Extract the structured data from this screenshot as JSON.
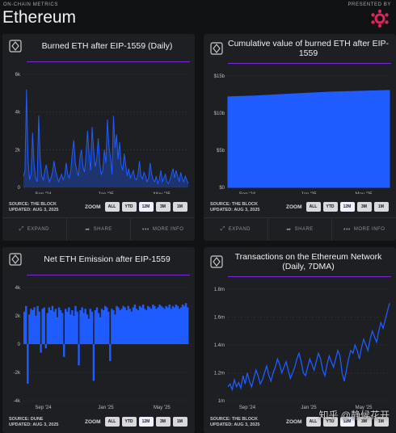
{
  "header": {
    "kicker": "ON-CHAIN METRICS",
    "title": "Ethereum",
    "presented_by": "PRESENTED BY",
    "logo_color": "#e0245e"
  },
  "colors": {
    "series": "#1f5cff",
    "accent_line": "#7a2bd9",
    "panel": "#1e1f22",
    "background": "#111214"
  },
  "panels": [
    {
      "title": "Burned ETH after EIP-1559 (Daily)",
      "source": "SOURCE: THE BLOCK",
      "updated": "UPDATED: AUG 3, 2025",
      "zoom_label": "ZOOM",
      "zoom_buttons": [
        "ALL",
        "YTD",
        "12M",
        "3M",
        "1M"
      ],
      "footer": [
        "EXPAND",
        "SHARE",
        "MORE INFO"
      ]
    },
    {
      "title": "Cumulative value of burned ETH after EIP-1559",
      "source": "SOURCE: THE BLOCK",
      "updated": "UPDATED: AUG 3, 2025",
      "zoom_label": "ZOOM",
      "zoom_buttons": [
        "ALL",
        "YTD",
        "12M",
        "3M",
        "1M"
      ],
      "footer": [
        "EXPAND",
        "SHARE",
        "MORE INFO"
      ]
    },
    {
      "title": "Net ETH Emission after EIP-1559",
      "source": "SOURCE: DUNE",
      "updated": "UPDATED: AUG 3, 2025",
      "zoom_label": "ZOOM",
      "zoom_buttons": [
        "ALL",
        "YTD",
        "12M",
        "3M",
        "1M"
      ]
    },
    {
      "title": "Transactions on the Ethereum Network (Daily, 7DMA)",
      "source": "SOURCE: THE BLOCK",
      "updated": "UPDATED: AUG 3, 2025",
      "zoom_label": "ZOOM",
      "zoom_buttons": [
        "ALL",
        "YTD",
        "12M",
        "3M",
        "1M"
      ]
    }
  ],
  "watermark": "知乎 @静候花开",
  "chart_data": [
    {
      "type": "area",
      "title": "Burned ETH after EIP-1559 (Daily)",
      "ylim": [
        0,
        6000
      ],
      "yticks": [
        0,
        2000,
        4000,
        6000
      ],
      "ytick_labels": [
        "0",
        "2k",
        "4k",
        "6k"
      ],
      "xticks": [
        "Sep '24",
        "Jan '25",
        "May '25"
      ],
      "xrange": [
        0,
        364
      ],
      "xtick_pos": [
        30,
        152,
        273
      ],
      "series": [
        {
          "values": [
            600,
            900,
            5200,
            1500,
            400,
            700,
            2900,
            1200,
            500,
            300,
            3800,
            1500,
            600,
            400,
            900,
            1200,
            700,
            300,
            500,
            800,
            1400,
            900,
            600,
            300,
            500,
            700,
            400,
            600,
            1300,
            700,
            500,
            900,
            1800,
            2500,
            1300,
            900,
            600,
            1600,
            2000,
            1100,
            800,
            1700,
            3000,
            1800,
            900,
            3200,
            2000,
            1100,
            1500,
            2600,
            1300,
            700,
            900,
            2000,
            1300,
            3600,
            2200,
            1600,
            700,
            3800,
            2100,
            2800,
            1500,
            2400,
            1200,
            900,
            1800,
            1200,
            600,
            1000,
            500,
            700,
            900,
            500,
            400,
            700,
            1400,
            600,
            450,
            800,
            600,
            300,
            500,
            1300,
            700,
            400,
            300,
            600,
            200,
            400,
            900,
            300,
            500,
            700,
            300,
            200,
            400,
            700,
            1000,
            500,
            900,
            600,
            300,
            800,
            500,
            300,
            600,
            400,
            200
          ]
        }
      ]
    },
    {
      "type": "area",
      "title": "Cumulative value of burned ETH after EIP-1559",
      "ylim": [
        0,
        15
      ],
      "yticks": [
        0,
        5,
        10,
        15
      ],
      "ytick_labels": [
        "$0",
        "$5b",
        "$10b",
        "$15b"
      ],
      "xticks": [
        "Sep '24",
        "Jan '25",
        "May '25"
      ],
      "x": [
        0,
        60,
        120,
        180,
        240,
        300,
        364
      ],
      "series": [
        {
          "values": [
            12.2,
            12.3,
            12.5,
            12.7,
            12.85,
            12.95,
            13.05
          ]
        }
      ]
    },
    {
      "type": "bar",
      "title": "Net ETH Emission after EIP-1559",
      "ylim": [
        -4000,
        4000
      ],
      "yticks": [
        -4000,
        -2000,
        0,
        2000,
        4000
      ],
      "ytick_labels": [
        "-4k",
        "-2k",
        "0",
        "2k",
        "4k"
      ],
      "xticks": [
        "Sep '24",
        "Jan '25",
        "May '25"
      ],
      "series": [
        {
          "values": [
            2300,
            2700,
            -2800,
            2100,
            2500,
            2400,
            2600,
            2000,
            2700,
            2300,
            -600,
            2500,
            2600,
            -300,
            2200,
            2600,
            2400,
            2700,
            2300,
            2500,
            1900,
            2600,
            2400,
            2200,
            -900,
            2500,
            2300,
            2600,
            2100,
            2400,
            2000,
            2700,
            2300,
            -1500,
            2400,
            2600,
            2200,
            2500,
            2100,
            1800,
            2500,
            2300,
            -2600,
            2400,
            2600,
            2200,
            1900,
            2500,
            2400,
            2700,
            2600,
            2300,
            -1200,
            2500,
            2400,
            2100,
            2700,
            2600,
            2400,
            2500,
            2700,
            2600,
            2400,
            2700,
            2500,
            2300,
            2600,
            2800,
            2500,
            2400,
            2700,
            2600,
            2800,
            2500,
            2400,
            2700,
            2600,
            2500,
            2800,
            2700,
            2500,
            2600,
            2800,
            2700,
            2600,
            2500,
            2700,
            2600,
            2800,
            2500,
            2700,
            2600,
            2800,
            2700,
            2500,
            2600,
            2800,
            2700,
            2900,
            2600
          ]
        }
      ]
    },
    {
      "type": "line",
      "title": "Transactions on the Ethereum Network (Daily, 7DMA)",
      "ylim": [
        1.0,
        1.8
      ],
      "yticks": [
        1.0,
        1.2,
        1.4,
        1.6,
        1.8
      ],
      "ytick_labels": [
        "1m",
        "1.2m",
        "1.4m",
        "1.6m",
        "1.8m"
      ],
      "xticks": [
        "Sep '24",
        "Jan '25",
        "May '25"
      ],
      "series": [
        {
          "values": [
            1.1,
            1.12,
            1.08,
            1.15,
            1.1,
            1.13,
            1.09,
            1.18,
            1.12,
            1.2,
            1.14,
            1.1,
            1.16,
            1.22,
            1.18,
            1.12,
            1.15,
            1.2,
            1.25,
            1.18,
            1.14,
            1.2,
            1.24,
            1.3,
            1.26,
            1.2,
            1.24,
            1.28,
            1.22,
            1.16,
            1.2,
            1.24,
            1.3,
            1.34,
            1.28,
            1.2,
            1.18,
            1.24,
            1.3,
            1.26,
            1.22,
            1.28,
            1.34,
            1.3,
            1.22,
            1.18,
            1.26,
            1.32,
            1.28,
            1.24,
            1.3,
            1.36,
            1.32,
            1.2,
            1.14,
            1.22,
            1.3,
            1.36,
            1.34,
            1.4,
            1.36,
            1.3,
            1.38,
            1.44,
            1.4,
            1.36,
            1.44,
            1.5,
            1.46,
            1.42,
            1.5,
            1.56,
            1.52,
            1.58,
            1.64,
            1.7
          ]
        }
      ]
    }
  ]
}
